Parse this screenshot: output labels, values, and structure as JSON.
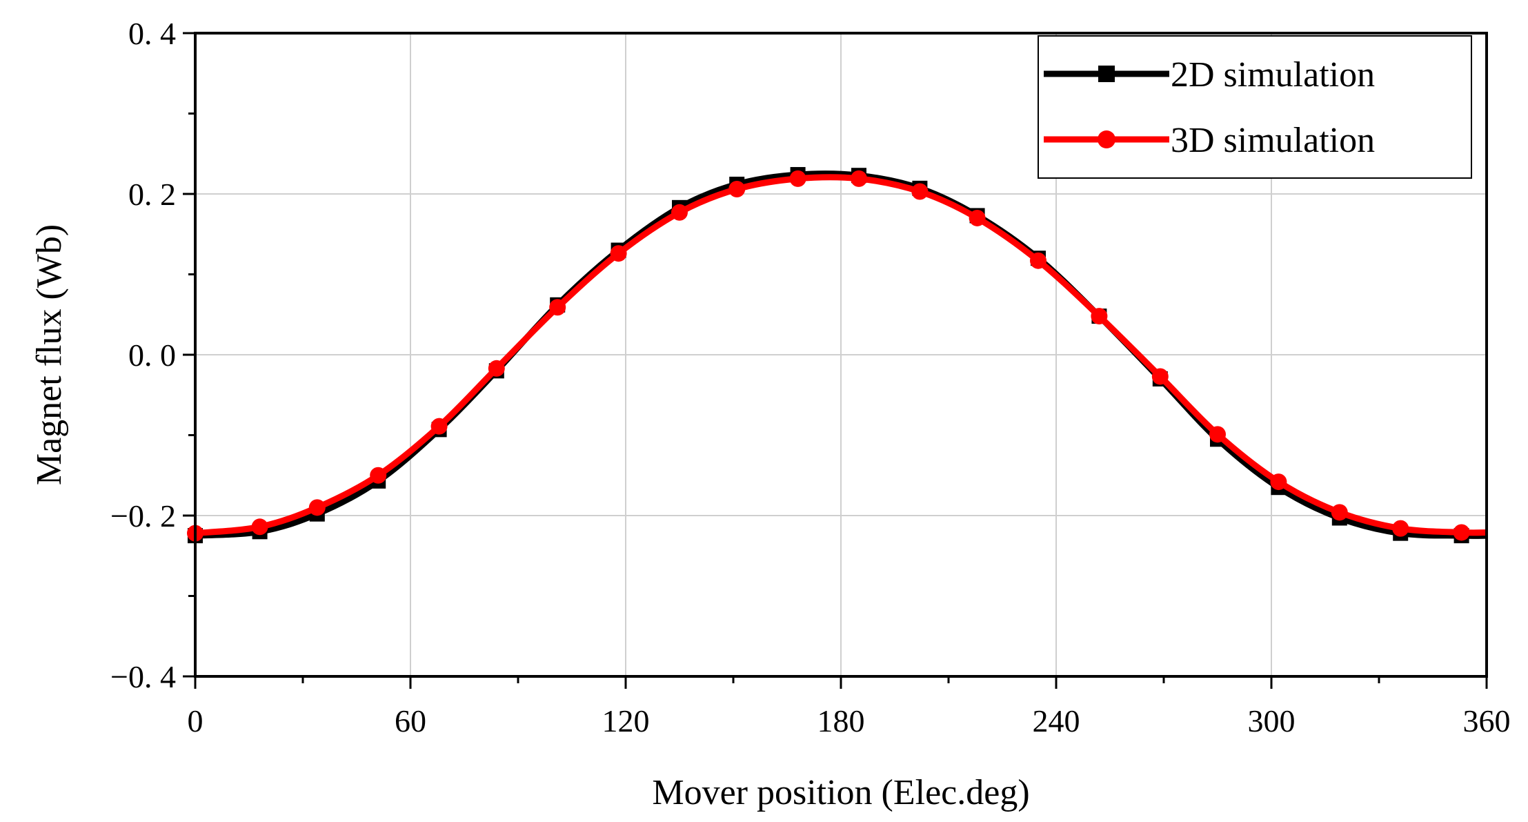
{
  "chart_data": {
    "type": "line",
    "title": "",
    "xlabel": "Mover position (Elec.deg)",
    "ylabel": "Magnet flux (Wb)",
    "xlim": [
      0,
      360
    ],
    "ylim": [
      -0.4,
      0.4
    ],
    "xticks": [
      0,
      60,
      120,
      180,
      240,
      300,
      360
    ],
    "xtick_labels": [
      "0",
      "60",
      "120",
      "180",
      "240",
      "300",
      "360"
    ],
    "yticks": [
      -0.4,
      -0.2,
      0.0,
      0.2,
      0.4
    ],
    "ytick_labels": [
      "−0. 4",
      "−0. 2",
      "0. 0",
      "0. 2",
      "0. 4"
    ],
    "grid": true,
    "legend_position": "top-right",
    "x": [
      0,
      18,
      34,
      51,
      68,
      84,
      101,
      118,
      135,
      151,
      168,
      185,
      202,
      218,
      235,
      252,
      269,
      285,
      302,
      319,
      336,
      353
    ],
    "series": [
      {
        "name": "2D simulation",
        "color": "#000000",
        "marker": "square",
        "values": [
          -0.225,
          -0.22,
          -0.198,
          -0.157,
          -0.093,
          -0.02,
          0.062,
          0.13,
          0.183,
          0.212,
          0.224,
          0.223,
          0.207,
          0.173,
          0.12,
          0.048,
          -0.03,
          -0.105,
          -0.165,
          -0.203,
          -0.222,
          -0.225
        ]
      },
      {
        "name": "3D simulation",
        "color": "#ff0000",
        "marker": "circle",
        "values": [
          -0.222,
          -0.214,
          -0.19,
          -0.15,
          -0.089,
          -0.017,
          0.059,
          0.126,
          0.177,
          0.206,
          0.219,
          0.219,
          0.203,
          0.17,
          0.117,
          0.048,
          -0.027,
          -0.099,
          -0.158,
          -0.196,
          -0.216,
          -0.221
        ]
      }
    ]
  }
}
